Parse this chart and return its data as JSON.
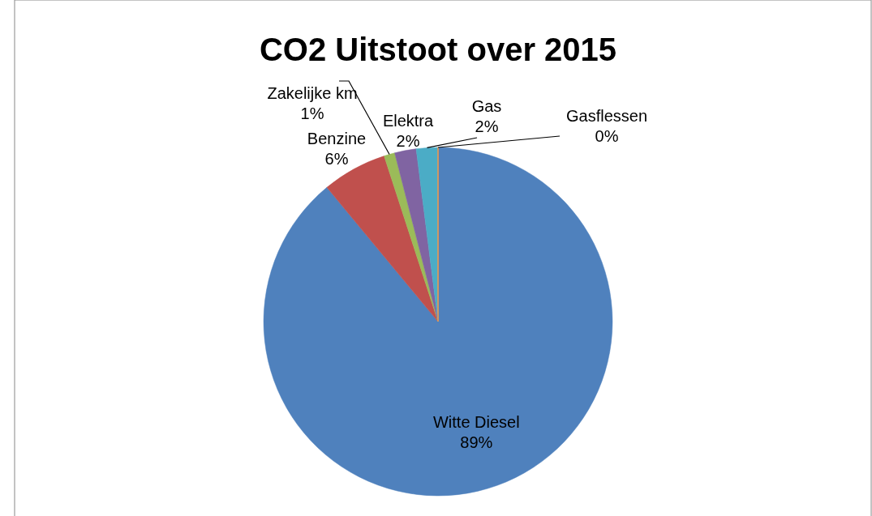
{
  "chart_data": {
    "type": "pie",
    "title": "CO2 Uitstoot over 2015",
    "categories": [
      "Witte Diesel",
      "Benzine",
      "Zakelijke km",
      "Elektra",
      "Gas",
      "Gasflessen"
    ],
    "values": [
      89,
      6,
      1,
      2,
      2,
      0
    ],
    "value_labels": [
      "89%",
      "6%",
      "1%",
      "2%",
      "2%",
      "0%"
    ],
    "colors": [
      "#4f81bd",
      "#c0504d",
      "#9bbb59",
      "#8064a2",
      "#4bacc6",
      "#f79646"
    ]
  }
}
